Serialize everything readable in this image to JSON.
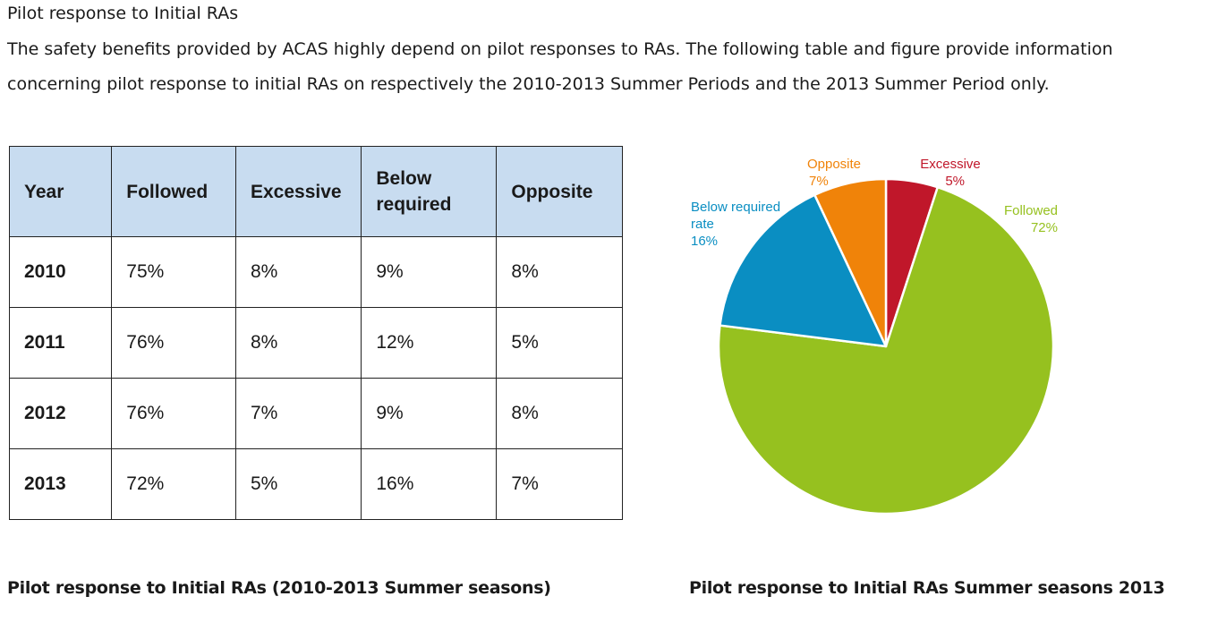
{
  "section_title": "Pilot response to Initial RAs",
  "intro": {
    "line1": "The safety benefits provided by ACAS highly depend on pilot responses to RAs. The following table and figure provide information",
    "line2": "concerning pilot response to initial RAs on respectively the 2010-2013 Summer Periods and the 2013 Summer Period only."
  },
  "table": {
    "headers": [
      "Year",
      "Followed",
      "Excessive",
      "Below required",
      "Opposite"
    ],
    "rows": [
      [
        "2010",
        "75%",
        "8%",
        "9%",
        "8%"
      ],
      [
        "2011",
        "76%",
        "8%",
        "12%",
        "5%"
      ],
      [
        "2012",
        "76%",
        "7%",
        "9%",
        "8%"
      ],
      [
        "2013",
        "72%",
        "5%",
        "16%",
        "7%"
      ]
    ],
    "header_color": "#c8dcf0"
  },
  "captions": {
    "table": "Pilot response to Initial RAs (2010-2013 Summer seasons)",
    "chart": "Pilot response to Initial RAs Summer seasons 2013"
  },
  "chart_data": {
    "type": "pie",
    "start": "12 o'clock, clockwise",
    "slices": [
      {
        "name": "Excessive",
        "label_lines": [
          "Excessive",
          "5%"
        ],
        "value": 5,
        "color": "#c0172a"
      },
      {
        "name": "Followed",
        "label_lines": [
          "Followed",
          "72%"
        ],
        "value": 72,
        "color": "#96c11f"
      },
      {
        "name": "Below required rate",
        "label_lines": [
          "Below required",
          "rate",
          "16%"
        ],
        "value": 16,
        "color": "#0a8ec2"
      },
      {
        "name": "Opposite",
        "label_lines": [
          "Opposite",
          "7%"
        ],
        "value": 7,
        "color": "#f08309"
      }
    ]
  }
}
